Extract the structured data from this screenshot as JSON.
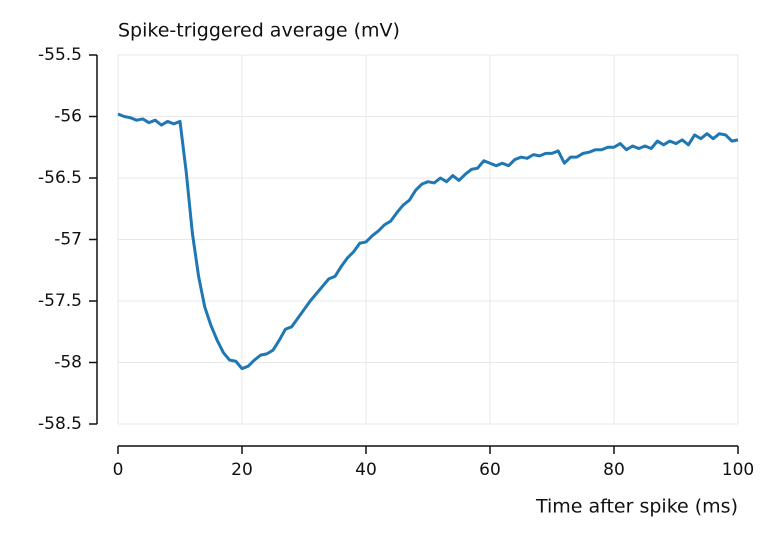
{
  "chart_data": {
    "type": "line",
    "title": "Spike-triggered average (mV)",
    "x_label": "Time after spike (ms)",
    "x": [
      0,
      1,
      2,
      3,
      4,
      5,
      6,
      7,
      8,
      9,
      10,
      11,
      12,
      13,
      14,
      15,
      16,
      17,
      18,
      19,
      20,
      21,
      22,
      23,
      24,
      25,
      26,
      27,
      28,
      29,
      30,
      31,
      32,
      33,
      34,
      35,
      36,
      37,
      38,
      39,
      40,
      41,
      42,
      43,
      44,
      45,
      46,
      47,
      48,
      49,
      50,
      51,
      52,
      53,
      54,
      55,
      56,
      57,
      58,
      59,
      60,
      61,
      62,
      63,
      64,
      65,
      66,
      67,
      68,
      69,
      70,
      71,
      72,
      73,
      74,
      75,
      76,
      77,
      78,
      79,
      80,
      81,
      82,
      83,
      84,
      85,
      86,
      87,
      88,
      89,
      90,
      91,
      92,
      93,
      94,
      95,
      96,
      97,
      98,
      99,
      100
    ],
    "series": [
      {
        "color": "#1f77b4",
        "values": [
          -55.98,
          -56.0,
          -56.01,
          -56.03,
          -56.02,
          -56.05,
          -56.03,
          -56.07,
          -56.04,
          -56.06,
          -56.04,
          -56.45,
          -56.95,
          -57.3,
          -57.55,
          -57.7,
          -57.82,
          -57.92,
          -57.98,
          -57.99,
          -58.05,
          -58.03,
          -57.98,
          -57.94,
          -57.93,
          -57.9,
          -57.82,
          -57.73,
          -57.71,
          -57.64,
          -57.57,
          -57.5,
          -57.44,
          -57.38,
          -57.32,
          -57.3,
          -57.22,
          -57.15,
          -57.1,
          -57.03,
          -57.02,
          -56.97,
          -56.93,
          -56.88,
          -56.85,
          -56.78,
          -56.72,
          -56.68,
          -56.6,
          -56.55,
          -56.53,
          -56.54,
          -56.5,
          -56.53,
          -56.48,
          -56.52,
          -56.47,
          -56.43,
          -56.42,
          -56.36,
          -56.38,
          -56.4,
          -56.38,
          -56.4,
          -56.35,
          -56.33,
          -56.34,
          -56.31,
          -56.32,
          -56.3,
          -56.3,
          -56.28,
          -56.38,
          -56.33,
          -56.33,
          -56.3,
          -56.29,
          -56.27,
          -56.27,
          -56.25,
          -56.25,
          -56.22,
          -56.27,
          -56.24,
          -56.26,
          -56.24,
          -56.26,
          -56.2,
          -56.23,
          -56.2,
          -56.22,
          -56.19,
          -56.23,
          -56.15,
          -56.18,
          -56.14,
          -56.18,
          -56.14,
          -56.15,
          -56.2,
          -56.19
        ]
      }
    ],
    "xlim": [
      0,
      100
    ],
    "xticks": [
      0,
      20,
      40,
      60,
      80,
      100
    ],
    "ylim": [
      -58.5,
      -55.5
    ],
    "yticks": [
      -58.5,
      -58,
      -57.5,
      -57,
      -56.5,
      -56,
      -55.5
    ],
    "grid": true
  }
}
